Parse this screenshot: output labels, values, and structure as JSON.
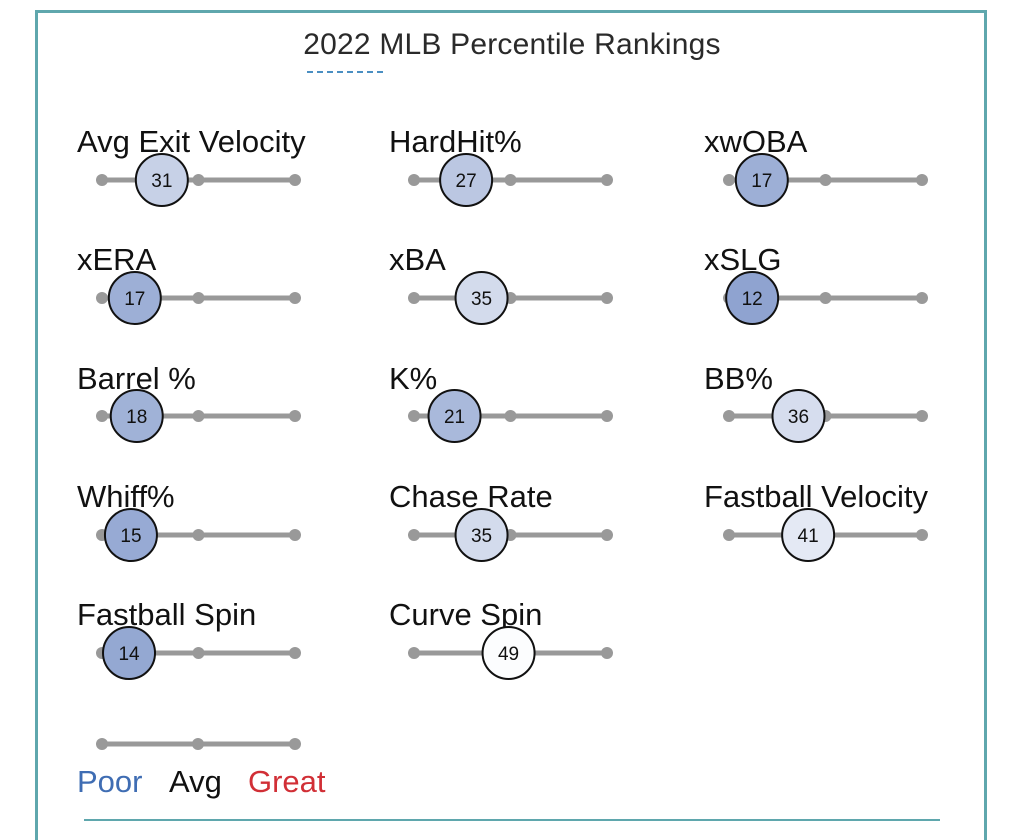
{
  "title": "2022 MLB Percentile Rankings",
  "chart_data": {
    "type": "percentile_slider",
    "title": "2022 MLB Percentile Rankings",
    "scale": [
      0,
      100
    ],
    "metrics": [
      {
        "name": "Avg Exit Velocity",
        "percentile": 31
      },
      {
        "name": "HardHit%",
        "percentile": 27
      },
      {
        "name": "xwOBA",
        "percentile": 17
      },
      {
        "name": "xERA",
        "percentile": 17
      },
      {
        "name": "xBA",
        "percentile": 35
      },
      {
        "name": "xSLG",
        "percentile": 12
      },
      {
        "name": "Barrel %",
        "percentile": 18
      },
      {
        "name": "K%",
        "percentile": 21
      },
      {
        "name": "BB%",
        "percentile": 36
      },
      {
        "name": "Whiff%",
        "percentile": 15
      },
      {
        "name": "Chase Rate",
        "percentile": 35
      },
      {
        "name": "Fastball Velocity",
        "percentile": 41
      },
      {
        "name": "Fastball Spin",
        "percentile": 14
      },
      {
        "name": "Curve Spin",
        "percentile": 49
      }
    ],
    "legend": {
      "poor": "Poor",
      "avg": "Avg",
      "great": "Great"
    },
    "colors": {
      "poor": "#3f6db3",
      "avg": "#111111",
      "great": "#d12f36",
      "track": "#999999",
      "circle_low": "#6b86c1",
      "circle_mid": "#ffffff",
      "circle_high": "#d12f36"
    }
  }
}
